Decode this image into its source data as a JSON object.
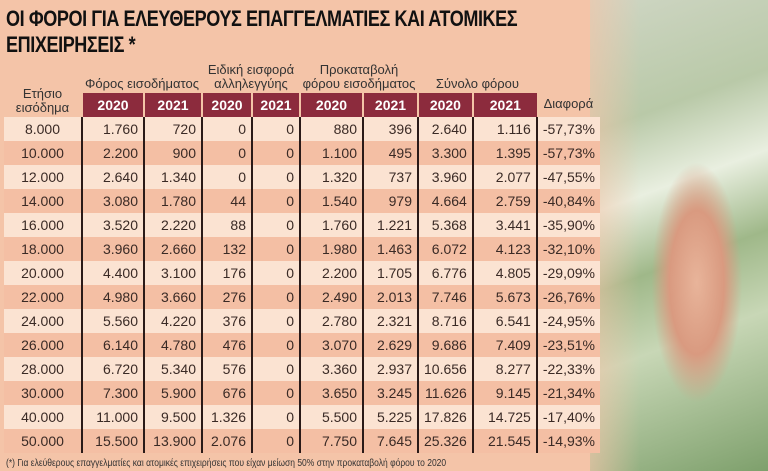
{
  "title": "ΟΙ ΦΟΡΟΙ ΓΙΑ ΕΛΕΥΘΕΡΟΥΣ ΕΠΑΓΓΕΛΜΑΤΙΕΣ ΚΑΙ ΑΤΟΜΙΚΕΣ ΕΠΙΧΕΙΡΗΣΕΙΣ *",
  "headers": {
    "income": "Ετήσιο εισόδημα",
    "income_tax": "Φόρος εισοδήματος",
    "solidarity": "Ειδική εισφορά αλληλεγγύης",
    "prepayment": "Προκαταβολή φόρου εισοδήματος",
    "total": "Σύνολο φόρου",
    "diff": "Διαφορά",
    "y2020": "2020",
    "y2021": "2021"
  },
  "rows": [
    [
      "8.000",
      "1.760",
      "720",
      "0",
      "0",
      "880",
      "396",
      "2.640",
      "1.116",
      "-57,73%"
    ],
    [
      "10.000",
      "2.200",
      "900",
      "0",
      "0",
      "1.100",
      "495",
      "3.300",
      "1.395",
      "-57,73%"
    ],
    [
      "12.000",
      "2.640",
      "1.340",
      "0",
      "0",
      "1.320",
      "737",
      "3.960",
      "2.077",
      "-47,55%"
    ],
    [
      "14.000",
      "3.080",
      "1.780",
      "44",
      "0",
      "1.540",
      "979",
      "4.664",
      "2.759",
      "-40,84%"
    ],
    [
      "16.000",
      "3.520",
      "2.220",
      "88",
      "0",
      "1.760",
      "1.221",
      "5.368",
      "3.441",
      "-35,90%"
    ],
    [
      "18.000",
      "3.960",
      "2.660",
      "132",
      "0",
      "1.980",
      "1.463",
      "6.072",
      "4.123",
      "-32,10%"
    ],
    [
      "20.000",
      "4.400",
      "3.100",
      "176",
      "0",
      "2.200",
      "1.705",
      "6.776",
      "4.805",
      "-29,09%"
    ],
    [
      "22.000",
      "4.980",
      "3.660",
      "276",
      "0",
      "2.490",
      "2.013",
      "7.746",
      "5.673",
      "-26,76%"
    ],
    [
      "24.000",
      "5.560",
      "4.220",
      "376",
      "0",
      "2.780",
      "2.321",
      "8.716",
      "6.541",
      "-24,95%"
    ],
    [
      "26.000",
      "6.140",
      "4.780",
      "476",
      "0",
      "3.070",
      "2.629",
      "9.686",
      "7.409",
      "-23,51%"
    ],
    [
      "28.000",
      "6.720",
      "5.340",
      "576",
      "0",
      "3.360",
      "2.937",
      "10.656",
      "8.277",
      "-22,33%"
    ],
    [
      "30.000",
      "7.300",
      "5.900",
      "676",
      "0",
      "3.650",
      "3.245",
      "11.626",
      "9.145",
      "-21,34%"
    ],
    [
      "40.000",
      "11.000",
      "9.500",
      "1.326",
      "0",
      "5.500",
      "5.225",
      "17.826",
      "14.725",
      "-17,40%"
    ],
    [
      "50.000",
      "15.500",
      "13.900",
      "2.076",
      "0",
      "7.750",
      "7.645",
      "25.326",
      "21.545",
      "-14,93%"
    ]
  ],
  "footnote": "(*) Για ελεύθερους επαγγελματίες και ατομικές επιχειρήσεις που είχαν μείωση 50% στην προκαταβολή φόρου το 2020",
  "colors": {
    "header": "#8c2b3d",
    "background": "#f4c4a8",
    "row_light": "#fbe3d2",
    "row_dark": "#f4bfa4"
  }
}
